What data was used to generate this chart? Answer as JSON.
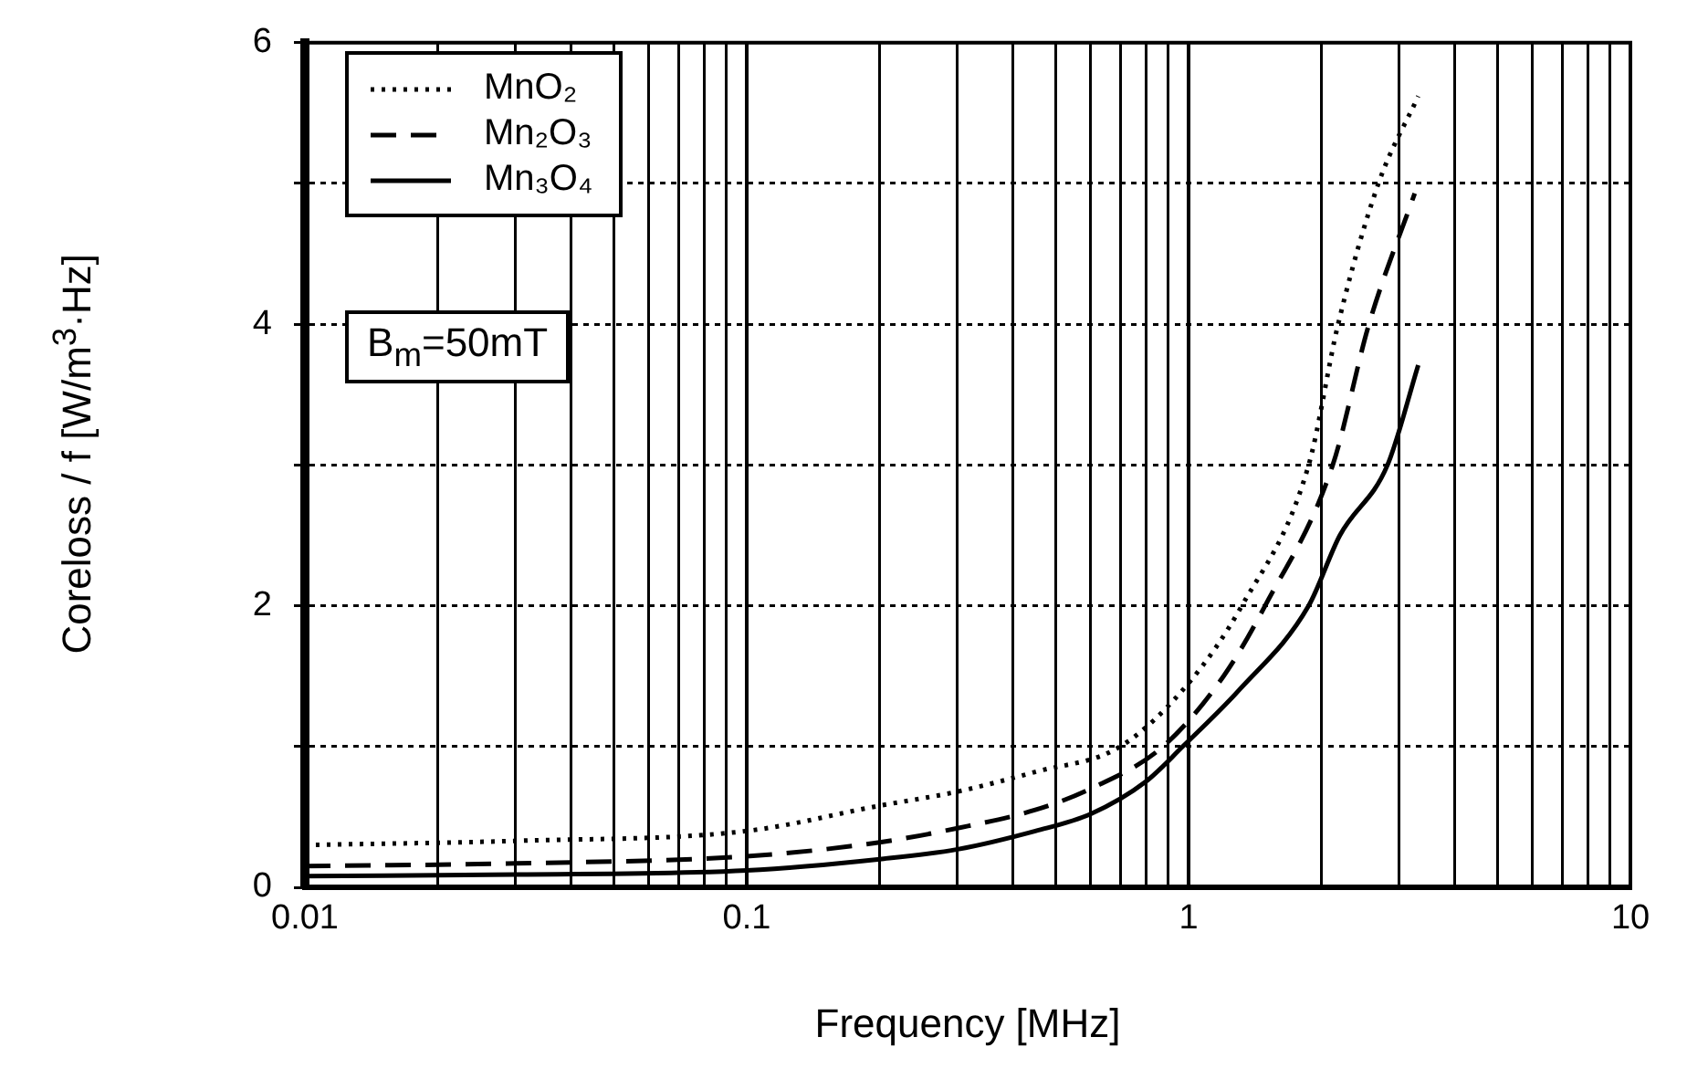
{
  "chart_data": {
    "type": "line",
    "xlabel": "Frequency [MHz]",
    "ylabel": "Coreloss / f  [W/m$^{3}$·Hz]",
    "log": "x",
    "grid": true,
    "legend": "top left",
    "marker": "none",
    "xlim": [
      0.01,
      10
    ],
    "ylim": [
      0,
      6
    ],
    "xticks": [
      0.01,
      {
        "value": 0.02,
        "label": null
      },
      {
        "value": 0.03,
        "label": null
      },
      {
        "value": 0.04,
        "label": null
      },
      {
        "value": 0.05,
        "label": null
      },
      {
        "value": 0.06,
        "label": null
      },
      {
        "value": 0.07,
        "label": null
      },
      {
        "value": 0.08,
        "label": null
      },
      {
        "value": 0.09,
        "label": null
      },
      0.1,
      {
        "value": 0.2,
        "label": null
      },
      {
        "value": 0.3,
        "label": null
      },
      {
        "value": 0.4,
        "label": null
      },
      {
        "value": 0.5,
        "label": null
      },
      {
        "value": 0.6,
        "label": null
      },
      {
        "value": 0.7,
        "label": null
      },
      {
        "value": 0.8,
        "label": null
      },
      {
        "value": 0.9,
        "label": null
      },
      1,
      {
        "value": 2,
        "label": null
      },
      {
        "value": 3,
        "label": null
      },
      {
        "value": 4,
        "label": null
      },
      {
        "value": 5,
        "label": null
      },
      {
        "value": 6,
        "label": null
      },
      {
        "value": 7,
        "label": null
      },
      {
        "value": 8,
        "label": null
      },
      {
        "value": 9,
        "label": null
      },
      10
    ],
    "yticks": [
      0,
      {
        "value": 1,
        "label": null
      },
      2,
      {
        "value": 3,
        "label": null
      },
      4,
      {
        "value": 5,
        "label": null
      },
      6
    ],
    "annotations": [
      "B$_{m}$=50mT"
    ],
    "series": [
      {
        "name": "MnO₂",
        "color": "#000000",
        "line_style": "dotted",
        "x": [
          0.01,
          0.03,
          0.1,
          0.2,
          0.3,
          0.45,
          0.7,
          1.0,
          1.32,
          1.87,
          2.18,
          2.69,
          3.31
        ],
        "values": [
          0.3,
          0.33,
          0.4,
          0.58,
          0.68,
          0.82,
          1,
          1.45,
          2,
          3,
          4,
          5,
          5.62
        ]
      },
      {
        "name": "Mn₂O₃",
        "color": "#000000",
        "line_style": "dashed",
        "x": [
          0.01,
          0.03,
          0.1,
          0.2,
          0.3,
          0.45,
          0.6,
          0.875,
          1.2,
          1.49,
          2.12,
          2.56,
          3.25
        ],
        "values": [
          0.15,
          0.17,
          0.22,
          0.32,
          0.42,
          0.55,
          0.7,
          1,
          1.5,
          2,
          3,
          4,
          4.93
        ]
      },
      {
        "name": "Mn₃O₄",
        "color": "#000000",
        "line_style": "solid",
        "x": [
          0.01,
          0.03,
          0.1,
          0.2,
          0.3,
          0.45,
          0.6,
          0.8,
          0.97,
          1.3,
          1.87,
          2.2,
          2.82,
          3.31
        ],
        "values": [
          0.08,
          0.09,
          0.12,
          0.2,
          0.27,
          0.4,
          0.52,
          0.75,
          1,
          1.4,
          2,
          2.5,
          3,
          3.71
        ]
      }
    ]
  }
}
